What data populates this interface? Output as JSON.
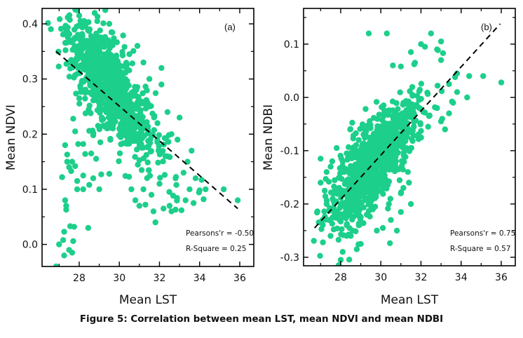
{
  "caption": "Figure 5: Correlation between mean LST, mean NDVI and mean NDBI",
  "chart_data": [
    {
      "type": "scatter",
      "panel_label": "(a)",
      "xlabel": "Mean LST",
      "ylabel": "Mean NDVI",
      "xlim": [
        26.15,
        36.7
      ],
      "ylim": [
        -0.04,
        0.428
      ],
      "xticks": [
        28,
        30,
        32,
        34,
        36
      ],
      "xtick_labels": [
        "28",
        "30",
        "32",
        "34",
        "36"
      ],
      "yticks": [
        0.0,
        0.1,
        0.2,
        0.3,
        0.4
      ],
      "ytick_labels": [
        "0.0",
        "0.1",
        "0.2",
        "0.3",
        "0.4"
      ],
      "x_minor_step": 1,
      "y_minor_step": 0.05,
      "grid": false,
      "marker_color": "#1ccf8b",
      "regression_line": {
        "x": [
          26.85,
          35.9
        ],
        "y": [
          0.35,
          0.065
        ],
        "style": "dashed",
        "color": "#000000"
      },
      "annotations": [
        "Pearsons'r = -0.50",
        "R-Square = 0.25"
      ],
      "stats": {
        "pearsons_r": -0.5,
        "r_square": 0.25
      },
      "cloud": {
        "n": 900,
        "x_mean": 29.6,
        "x_sd": 1.05,
        "y_intercept_at_mean": 0.28,
        "slope": -0.045,
        "y_sd": 0.035
      },
      "points": [
        [
          29.3,
          0.425
        ],
        [
          28.0,
          0.415
        ],
        [
          28.9,
          0.405
        ],
        [
          29.5,
          0.4
        ],
        [
          28.5,
          0.39
        ],
        [
          30.9,
          0.36
        ],
        [
          30.5,
          0.345
        ],
        [
          31.2,
          0.33
        ],
        [
          31.5,
          0.3
        ],
        [
          32.1,
          0.32
        ],
        [
          27.9,
          0.335
        ],
        [
          28.2,
          0.36
        ],
        [
          28.1,
          0.38
        ],
        [
          28.6,
          0.29
        ],
        [
          28.3,
          0.275
        ],
        [
          28.0,
          0.265
        ],
        [
          27.7,
          0.228
        ],
        [
          27.8,
          0.205
        ],
        [
          28.5,
          0.206
        ],
        [
          28.7,
          0.198
        ],
        [
          27.95,
          0.182
        ],
        [
          28.2,
          0.182
        ],
        [
          27.3,
          0.18
        ],
        [
          27.4,
          0.163
        ],
        [
          27.4,
          0.15
        ],
        [
          27.65,
          0.15
        ],
        [
          27.5,
          0.14
        ],
        [
          27.8,
          0.142
        ],
        [
          28.3,
          0.164
        ],
        [
          28.6,
          0.165
        ],
        [
          27.15,
          0.122
        ],
        [
          27.6,
          0.133
        ],
        [
          27.9,
          0.115
        ],
        [
          28.2,
          0.125
        ],
        [
          28.7,
          0.12
        ],
        [
          29.1,
          0.127
        ],
        [
          29.5,
          0.128
        ],
        [
          27.3,
          0.08
        ],
        [
          27.35,
          0.07
        ],
        [
          27.35,
          0.063
        ],
        [
          27.9,
          0.1
        ],
        [
          28.2,
          0.1
        ],
        [
          28.5,
          0.108
        ],
        [
          29.0,
          0.1
        ],
        [
          27.55,
          0.033
        ],
        [
          27.75,
          0.032
        ],
        [
          28.45,
          0.03
        ],
        [
          27.25,
          0.023
        ],
        [
          27.0,
          0.0
        ],
        [
          27.2,
          0.008
        ],
        [
          27.7,
          0.006
        ],
        [
          27.5,
          -0.01
        ],
        [
          27.25,
          -0.02
        ],
        [
          27.65,
          -0.015
        ],
        [
          26.85,
          -0.04
        ],
        [
          31.2,
          0.1
        ],
        [
          31.6,
          0.09
        ],
        [
          31.7,
          0.06
        ],
        [
          31.8,
          0.04
        ],
        [
          32.2,
          0.065
        ],
        [
          32.5,
          0.07
        ],
        [
          32.6,
          0.06
        ],
        [
          32.8,
          0.063
        ],
        [
          33.1,
          0.062
        ],
        [
          33.3,
          0.08
        ],
        [
          33.5,
          0.1
        ],
        [
          33.7,
          0.075
        ],
        [
          34.0,
          0.098
        ],
        [
          34.3,
          0.1
        ],
        [
          34.2,
          0.082
        ],
        [
          35.2,
          0.1
        ],
        [
          35.9,
          0.08
        ],
        [
          30.8,
          0.08
        ],
        [
          31.0,
          0.07
        ],
        [
          30.6,
          0.1
        ],
        [
          31.3,
          0.072
        ],
        [
          32.0,
          0.11
        ],
        [
          32.8,
          0.12
        ],
        [
          33.2,
          0.13
        ],
        [
          33.8,
          0.12
        ],
        [
          34.1,
          0.117
        ],
        [
          32.3,
          0.16
        ],
        [
          32.9,
          0.19
        ],
        [
          33.4,
          0.15
        ],
        [
          33.6,
          0.17
        ],
        [
          32.6,
          0.2
        ],
        [
          31.9,
          0.22
        ],
        [
          32.4,
          0.24
        ],
        [
          33.0,
          0.23
        ],
        [
          32.1,
          0.29
        ]
      ]
    },
    {
      "type": "scatter",
      "panel_label": "(b)",
      "xlabel": "Mean LST",
      "ylabel": "Mean NDBI",
      "xlim": [
        26.15,
        36.7
      ],
      "ylim": [
        -0.316,
        0.167
      ],
      "xticks": [
        28,
        30,
        32,
        34,
        36
      ],
      "xtick_labels": [
        "28",
        "30",
        "32",
        "34",
        "36"
      ],
      "yticks": [
        -0.3,
        -0.2,
        -0.1,
        0.0,
        0.1
      ],
      "ytick_labels": [
        "-0.3",
        "-0.2",
        "-0.1",
        "0.0",
        "0.1"
      ],
      "x_minor_step": 1,
      "y_minor_step": 0.05,
      "grid": false,
      "marker_color": "#1ccf8b",
      "regression_line": {
        "x": [
          26.7,
          35.95
        ],
        "y": [
          -0.245,
          0.138
        ],
        "style": "dashed",
        "color": "#000000"
      },
      "annotations": [
        "Pearsons'r = 0.75",
        "R-Square = 0.57"
      ],
      "stats": {
        "pearsons_r": 0.75,
        "r_square": 0.57
      },
      "cloud": {
        "n": 950,
        "x_mean": 29.7,
        "x_sd": 1.0,
        "y_intercept_at_mean": -0.12,
        "slope": 0.042,
        "y_sd": 0.035
      },
      "points": [
        [
          29.4,
          0.12
        ],
        [
          30.3,
          0.12
        ],
        [
          32.5,
          0.12
        ],
        [
          32.0,
          0.1
        ],
        [
          33.0,
          0.105
        ],
        [
          32.2,
          0.095
        ],
        [
          32.8,
          0.09
        ],
        [
          31.5,
          0.085
        ],
        [
          33.1,
          0.083
        ],
        [
          33.0,
          0.07
        ],
        [
          31.7,
          0.065
        ],
        [
          30.6,
          0.06
        ],
        [
          31.0,
          0.058
        ],
        [
          33.8,
          0.045
        ],
        [
          35.1,
          0.04
        ],
        [
          36.0,
          0.028
        ],
        [
          34.4,
          0.04
        ],
        [
          33.7,
          0.038
        ],
        [
          33.4,
          0.025
        ],
        [
          33.8,
          0.01
        ],
        [
          34.3,
          0.0
        ],
        [
          33.6,
          -0.01
        ],
        [
          32.8,
          -0.02
        ],
        [
          33.4,
          -0.03
        ],
        [
          33.2,
          -0.06
        ],
        [
          33.0,
          -0.045
        ],
        [
          32.4,
          -0.035
        ],
        [
          27.0,
          -0.115
        ],
        [
          27.8,
          -0.095
        ],
        [
          28.3,
          -0.105
        ],
        [
          28.6,
          -0.095
        ],
        [
          28.9,
          -0.08
        ],
        [
          29.2,
          -0.06
        ],
        [
          28.1,
          -0.12
        ],
        [
          27.5,
          -0.13
        ],
        [
          27.3,
          -0.14
        ],
        [
          27.0,
          -0.16
        ],
        [
          27.2,
          -0.175
        ],
        [
          27.8,
          -0.18
        ],
        [
          27.6,
          -0.19
        ],
        [
          27.3,
          -0.2
        ],
        [
          28.0,
          -0.2
        ],
        [
          27.7,
          -0.225
        ],
        [
          28.0,
          -0.233
        ],
        [
          28.3,
          -0.24
        ],
        [
          28.6,
          -0.25
        ],
        [
          28.9,
          -0.24
        ],
        [
          29.3,
          -0.22
        ],
        [
          29.6,
          -0.21
        ],
        [
          29.8,
          -0.25
        ],
        [
          30.1,
          -0.245
        ],
        [
          28.3,
          -0.26
        ],
        [
          28.8,
          -0.285
        ],
        [
          28.1,
          -0.29
        ],
        [
          29.0,
          -0.275
        ],
        [
          28.5,
          -0.26
        ],
        [
          28.0,
          -0.305
        ],
        [
          27.9,
          -0.315
        ],
        [
          30.4,
          -0.2
        ],
        [
          30.5,
          -0.23
        ],
        [
          31.0,
          -0.18
        ],
        [
          31.4,
          -0.16
        ],
        [
          31.5,
          -0.2
        ],
        [
          31.0,
          -0.215
        ],
        [
          30.8,
          -0.25
        ]
      ]
    }
  ]
}
